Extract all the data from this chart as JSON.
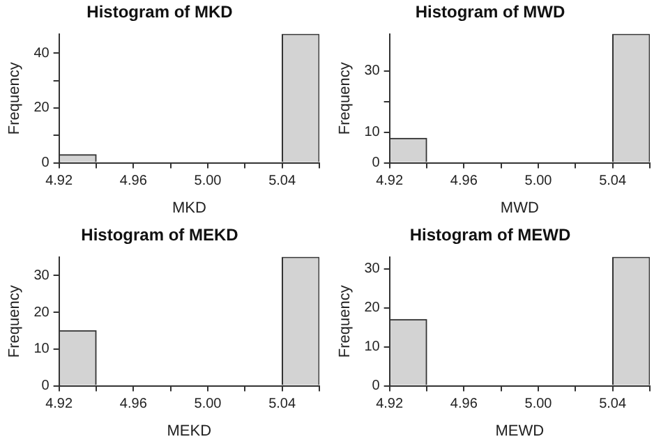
{
  "chart_data": [
    {
      "type": "histogram",
      "title": "Histogram of MKD",
      "xlabel": "MKD",
      "ylabel": "Frequency",
      "bins": [
        4.92,
        4.94,
        4.96,
        4.98,
        5.0,
        5.02,
        5.04,
        5.06
      ],
      "values": [
        3,
        0,
        0,
        0,
        0,
        0,
        47
      ],
      "color": "#d3d3d3",
      "xlim": [
        4.92,
        5.06
      ],
      "xticks": [
        4.92,
        {
          "value": 4.94,
          "label": null
        },
        4.96,
        {
          "value": 4.98,
          "label": null
        },
        "5.00",
        {
          "value": 5.02,
          "label": null
        },
        5.04,
        {
          "value": 5.06,
          "label": null
        }
      ],
      "ylim": [
        0,
        47
      ],
      "yticks": [
        0,
        {
          "value": 10,
          "label": null
        },
        20,
        {
          "value": 30,
          "label": null
        },
        40
      ],
      "grid": false,
      "legend": false
    },
    {
      "type": "histogram",
      "title": "Histogram of MWD",
      "xlabel": "MWD",
      "ylabel": "Frequency",
      "bins": [
        4.92,
        4.94,
        4.96,
        4.98,
        5.0,
        5.02,
        5.04,
        5.06
      ],
      "values": [
        8,
        0,
        0,
        0,
        0,
        0,
        42
      ],
      "color": "#d3d3d3",
      "xlim": [
        4.92,
        5.06
      ],
      "xticks": [
        4.92,
        {
          "value": 4.94,
          "label": null
        },
        4.96,
        {
          "value": 4.98,
          "label": null
        },
        "5.00",
        {
          "value": 5.02,
          "label": null
        },
        5.04,
        {
          "value": 5.06,
          "label": null
        }
      ],
      "ylim": [
        0,
        42
      ],
      "yticks": [
        0,
        10,
        {
          "value": 20,
          "label": null
        },
        30
      ],
      "grid": false,
      "legend": false
    },
    {
      "type": "histogram",
      "title": "Histogram of MEKD",
      "xlabel": "MEKD",
      "ylabel": "Frequency",
      "bins": [
        4.92,
        4.94,
        4.96,
        4.98,
        5.0,
        5.02,
        5.04,
        5.06
      ],
      "values": [
        15,
        0,
        0,
        0,
        0,
        0,
        35
      ],
      "color": "#d3d3d3",
      "xlim": [
        4.92,
        5.06
      ],
      "xticks": [
        4.92,
        {
          "value": 4.94,
          "label": null
        },
        4.96,
        {
          "value": 4.98,
          "label": null
        },
        "5.00",
        {
          "value": 5.02,
          "label": null
        },
        5.04,
        {
          "value": 5.06,
          "label": null
        }
      ],
      "ylim": [
        0,
        35
      ],
      "yticks": [
        0,
        10,
        20,
        30
      ],
      "grid": false,
      "legend": false
    },
    {
      "type": "histogram",
      "title": "Histogram of MEWD",
      "xlabel": "MEWD",
      "ylabel": "Frequency",
      "bins": [
        4.92,
        4.94,
        4.96,
        4.98,
        5.0,
        5.02,
        5.04,
        5.06
      ],
      "values": [
        17,
        0,
        0,
        0,
        0,
        0,
        33
      ],
      "color": "#d3d3d3",
      "xlim": [
        4.92,
        5.06
      ],
      "xticks": [
        4.92,
        {
          "value": 4.94,
          "label": null
        },
        4.96,
        {
          "value": 4.98,
          "label": null
        },
        "5.00",
        {
          "value": 5.02,
          "label": null
        },
        5.04,
        {
          "value": 5.06,
          "label": null
        }
      ],
      "ylim": [
        0,
        33
      ],
      "yticks": [
        0,
        10,
        20,
        30
      ],
      "grid": false,
      "legend": false
    }
  ]
}
